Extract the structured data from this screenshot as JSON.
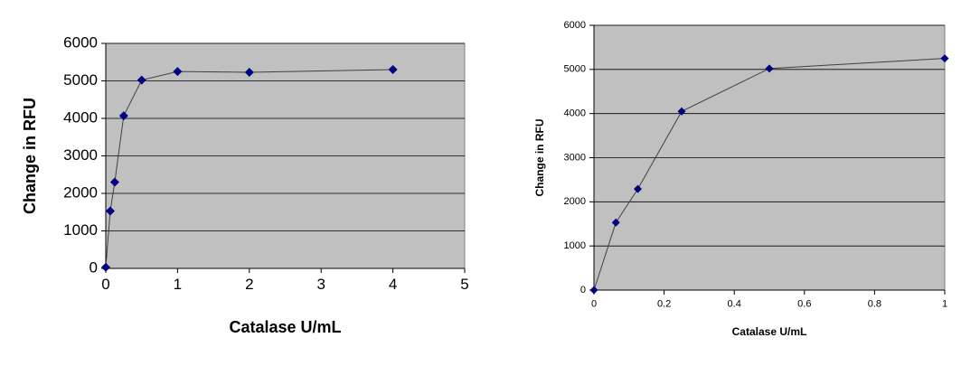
{
  "chart_data": [
    {
      "type": "line",
      "x_label": "Catalase U/mL",
      "y_label": "Change in RFU",
      "x": [
        0,
        0.0625,
        0.125,
        0.25,
        0.5,
        1,
        2,
        4
      ],
      "series": [
        {
          "color": "#000080",
          "values": [
            30,
            1530,
            2300,
            4070,
            5020,
            5250,
            5230,
            5300
          ]
        }
      ],
      "xlim": [
        0,
        5
      ],
      "xticks": [
        0,
        1,
        2,
        3,
        4,
        5
      ],
      "ylim": [
        0,
        6000
      ],
      "yticks": [
        0,
        1000,
        2000,
        3000,
        4000,
        5000,
        6000
      ],
      "grid": true
    },
    {
      "type": "line",
      "x_label": "Catalase U/mL",
      "y_label": "Change in RFU",
      "x": [
        0,
        0.0625,
        0.125,
        0.25,
        0.5,
        1
      ],
      "series": [
        {
          "color": "#000080",
          "values": [
            0,
            1530,
            2290,
            4050,
            5020,
            5250
          ]
        }
      ],
      "xlim": [
        0,
        1
      ],
      "xticks": [
        0,
        0.2,
        0.4,
        0.6,
        0.8,
        1
      ],
      "ylim": [
        0,
        6000
      ],
      "yticks": [
        0,
        1000,
        2000,
        3000,
        4000,
        5000,
        6000
      ],
      "grid": true
    }
  ]
}
